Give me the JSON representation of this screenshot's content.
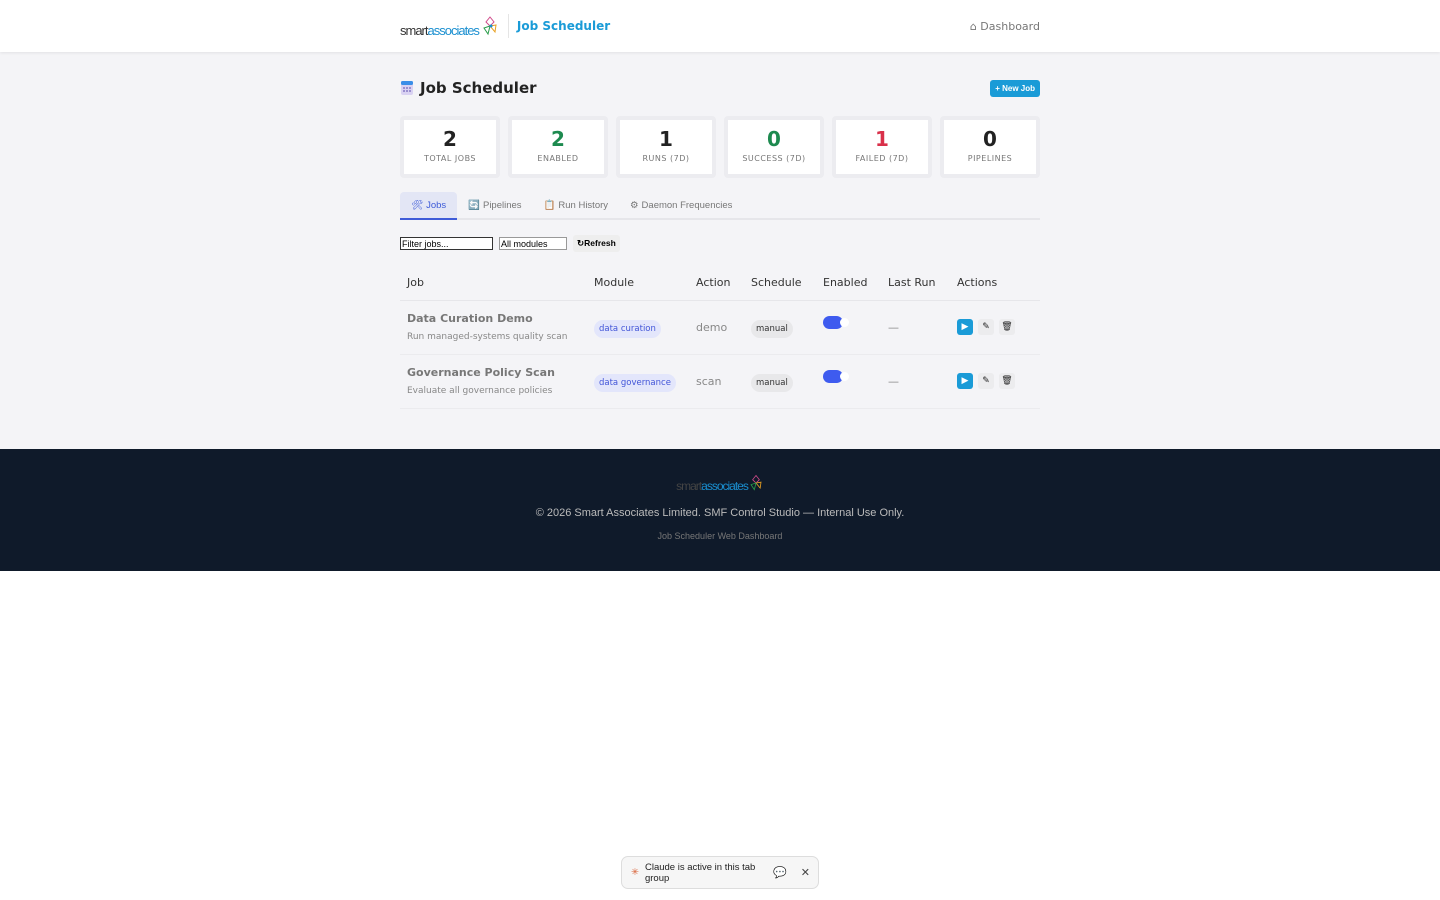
{
  "header": {
    "logo_a": "smart",
    "logo_b": "associates",
    "brand": "Job Scheduler",
    "nav_dashboard": "⌂ Dashboard"
  },
  "page": {
    "title": "Job Scheduler",
    "new_job": "+ New Job"
  },
  "stats": [
    {
      "value": "2",
      "label": "TOTAL JOBS"
    },
    {
      "value": "2",
      "label": "ENABLED",
      "color": "#1d8a4f"
    },
    {
      "value": "1",
      "label": "RUNS (7D)"
    },
    {
      "value": "0",
      "label": "SUCCESS (7D)",
      "color": "#1d8a4f"
    },
    {
      "value": "1",
      "label": "FAILED (7D)",
      "color": "#d9304a"
    },
    {
      "value": "0",
      "label": "PIPELINES"
    }
  ],
  "tabs": [
    {
      "icon": "🛠",
      "label": "Jobs"
    },
    {
      "icon": "🔄",
      "label": "Pipelines"
    },
    {
      "icon": "📋",
      "label": "Run History"
    },
    {
      "icon": "⚙",
      "label": "Daemon Frequencies"
    }
  ],
  "filters": {
    "filter_value": "Filter jobs...",
    "module_value": "All modules",
    "refresh": "↻Refresh"
  },
  "table": {
    "headers": [
      "Job",
      "Module",
      "Action",
      "Schedule",
      "Enabled",
      "Last Run",
      "Actions"
    ],
    "rows": [
      {
        "name": "Data Curation Demo",
        "desc": "Run managed-systems quality scan",
        "module": "data curation",
        "action": "demo",
        "schedule": "manual",
        "enabled": true,
        "last_run": "—"
      },
      {
        "name": "Governance Policy Scan",
        "desc": "Evaluate all governance policies",
        "module": "data governance",
        "action": "scan",
        "schedule": "manual",
        "enabled": true,
        "last_run": "—"
      }
    ]
  },
  "footer": {
    "logo_a": "smart",
    "logo_b": "associates",
    "copyright": "© 2026 Smart Associates Limited. SMF Control Studio — Internal Use Only.",
    "sub": "Job Scheduler Web Dashboard"
  },
  "claude_bar": {
    "text": "Claude is active in this tab group"
  },
  "colors": {
    "accent": "#1a9bd7",
    "tab_active": "#3e5bd8",
    "footer_bg": "#0f1a2a",
    "toggle_on": "#3e5bef"
  }
}
